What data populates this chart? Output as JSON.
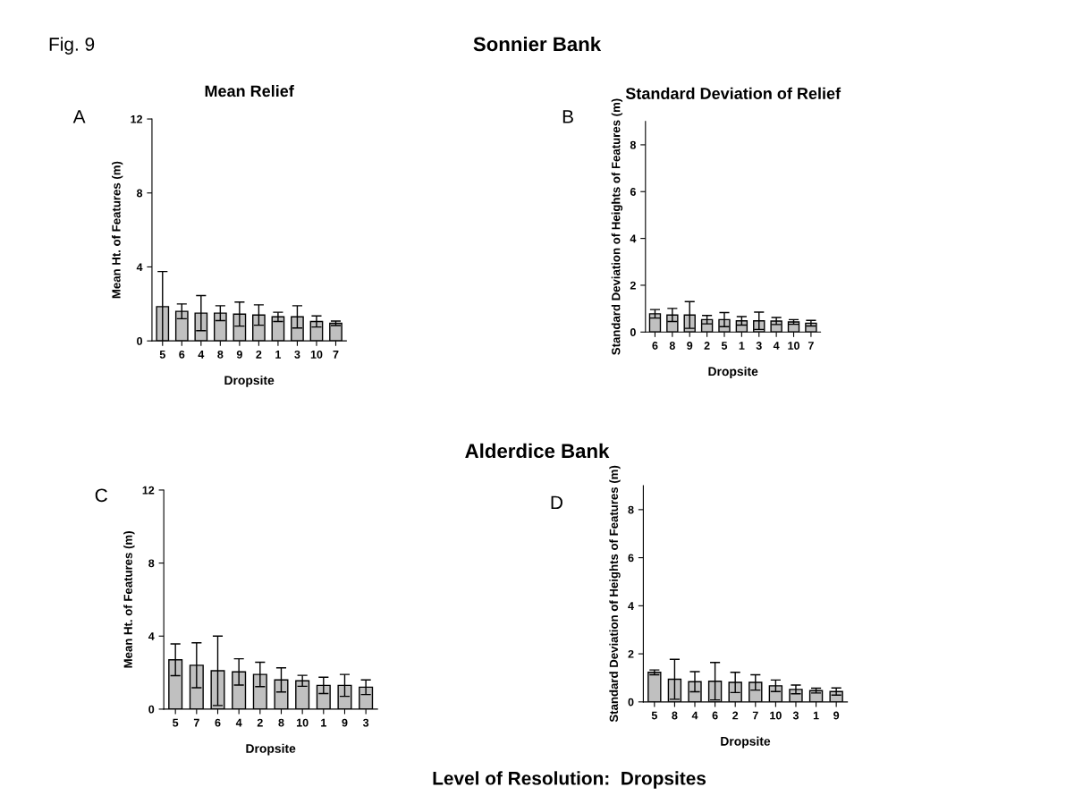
{
  "chart_data": [
    {
      "type": "bar",
      "title": "Mean Relief",
      "xlabel": "Dropsite",
      "ylabel": "Mean Ht. of Features (m)",
      "annotations": [
        "Fig. 9",
        "Sonnier Bank",
        "A"
      ],
      "color": "#c0c0c0",
      "categories": [
        "5",
        "6",
        "4",
        "8",
        "9",
        "2",
        "1",
        "3",
        "10",
        "7"
      ],
      "values": [
        1.85,
        1.6,
        1.5,
        1.5,
        1.45,
        1.4,
        1.3,
        1.3,
        1.05,
        0.95
      ],
      "errors": [
        1.9,
        0.4,
        0.95,
        0.4,
        0.65,
        0.55,
        0.25,
        0.6,
        0.3,
        0.12
      ],
      "ylim": [
        0,
        12
      ],
      "yticks": [
        0,
        4,
        8,
        12
      ],
      "grid": false,
      "legend": false
    },
    {
      "type": "bar",
      "title": "Standard Deviation of Relief",
      "xlabel": "Dropsite",
      "ylabel": "Standard Deviation of Heights of Features (m)",
      "annotations": [
        "B"
      ],
      "color": "#c0c0c0",
      "categories": [
        "6",
        "8",
        "9",
        "2",
        "5",
        "1",
        "3",
        "4",
        "10",
        "7"
      ],
      "values": [
        0.78,
        0.73,
        0.73,
        0.53,
        0.53,
        0.48,
        0.48,
        0.47,
        0.43,
        0.38
      ],
      "errors": [
        0.18,
        0.28,
        0.57,
        0.18,
        0.3,
        0.18,
        0.37,
        0.15,
        0.1,
        0.12
      ],
      "ylim": [
        0,
        9
      ],
      "yticks": [
        0,
        2,
        4,
        6,
        8
      ],
      "grid": false,
      "legend": false
    },
    {
      "type": "bar",
      "xlabel": "Dropsite",
      "ylabel": "Mean Ht. of Features (m)",
      "annotations": [
        "Alderdice Bank",
        "C",
        "Level of Resolution:  Dropsites"
      ],
      "color": "#c0c0c0",
      "categories": [
        "5",
        "7",
        "6",
        "4",
        "2",
        "8",
        "10",
        "1",
        "9",
        "3"
      ],
      "values": [
        2.7,
        2.4,
        2.1,
        2.04,
        1.9,
        1.6,
        1.55,
        1.3,
        1.3,
        1.2
      ],
      "errors": [
        0.87,
        1.23,
        1.9,
        0.72,
        0.67,
        0.66,
        0.3,
        0.45,
        0.6,
        0.4
      ],
      "ylim": [
        0,
        12
      ],
      "yticks": [
        0,
        4,
        8,
        12
      ],
      "grid": false,
      "legend": false
    },
    {
      "type": "bar",
      "xlabel": "Dropsite",
      "ylabel": "Standard Deviation of Heights of Features (m)",
      "annotations": [
        "D"
      ],
      "color": "#c0c0c0",
      "categories": [
        "5",
        "8",
        "4",
        "6",
        "2",
        "7",
        "10",
        "3",
        "1",
        "9"
      ],
      "values": [
        1.23,
        0.94,
        0.84,
        0.86,
        0.81,
        0.81,
        0.67,
        0.52,
        0.47,
        0.43
      ],
      "errors": [
        0.1,
        0.83,
        0.42,
        0.78,
        0.42,
        0.32,
        0.24,
        0.18,
        0.1,
        0.15
      ],
      "ylim": [
        0,
        9
      ],
      "yticks": [
        0,
        2,
        4,
        6,
        8
      ],
      "grid": false,
      "legend": false
    }
  ]
}
